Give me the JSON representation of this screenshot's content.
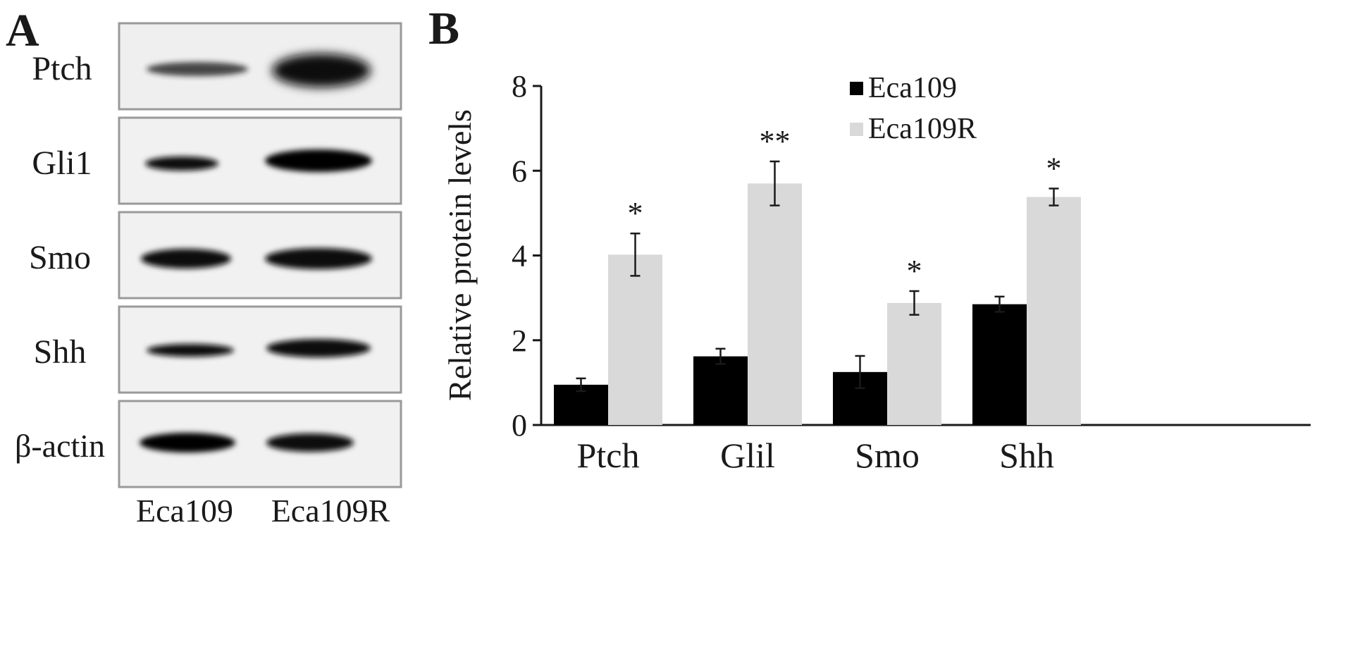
{
  "panelA": {
    "letter": "A",
    "rows": [
      "Ptch",
      "Gli1",
      "Smo",
      "Shh",
      "β-actin"
    ],
    "lanes": [
      "Eca109",
      "Eca109R"
    ]
  },
  "panelB": {
    "letter": "B"
  },
  "chart_data": {
    "type": "bar",
    "categories": [
      "Ptch",
      "Glil",
      "Smo",
      "Shh"
    ],
    "series": [
      {
        "name": "Eca109",
        "values": [
          0.95,
          1.62,
          1.25,
          2.85
        ],
        "errors": [
          0.15,
          0.18,
          0.38,
          0.18
        ],
        "color": "#000000"
      },
      {
        "name": "Eca109R",
        "values": [
          4.02,
          5.7,
          2.88,
          5.38
        ],
        "errors": [
          0.5,
          0.52,
          0.28,
          0.2
        ],
        "color": "#d9d9d9"
      }
    ],
    "significance": [
      "*",
      "**",
      "*",
      "*"
    ],
    "ylabel": "Relative protein levels",
    "xlabel": "",
    "ylim": [
      0,
      8
    ],
    "yticks": [
      "0",
      "2",
      "4",
      "6",
      "8"
    ],
    "legend_position": "top-right",
    "grid": false
  }
}
